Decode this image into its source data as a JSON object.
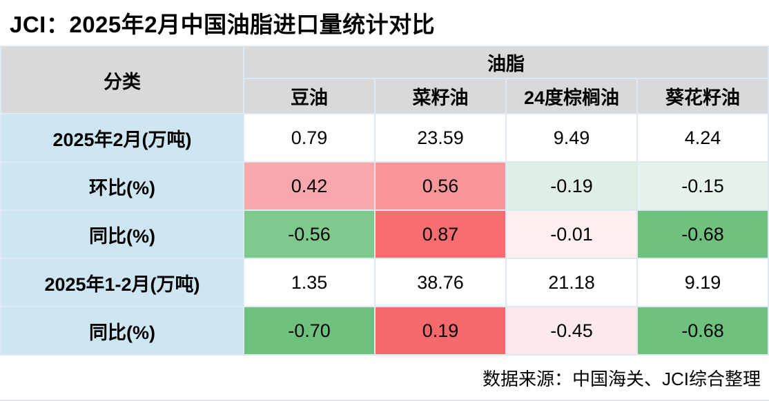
{
  "title": "JCI：2025年2月中国油脂进口量统计对比",
  "footer": {
    "source": "数据来源：中国海关、JCI综合整理"
  },
  "colors": {
    "header_bg": "#d9d9d9",
    "row_label_bg": "#cee6f2",
    "grid_line": "#dce9f3",
    "red_strong": "#f76d70",
    "pink_medium": "#f9969c",
    "pink_light": "#f8a9ae",
    "pink_faint": "#fbe9ec",
    "green_strong": "#6ec27e",
    "green_medium": "#7ec98c",
    "green_faint": "#def0e4"
  },
  "table": {
    "corner_header": "分类",
    "group_header": "油脂",
    "columns": [
      "豆油",
      "菜籽油",
      "24度棕榈油",
      "葵花籽油"
    ],
    "rows": [
      {
        "label": "2025年2月(万吨)",
        "cells": [
          {
            "value": "0.79",
            "bg": "#ffffff"
          },
          {
            "value": "23.59",
            "bg": "#ffffff"
          },
          {
            "value": "9.49",
            "bg": "#ffffff"
          },
          {
            "value": "4.24",
            "bg": "#ffffff"
          }
        ]
      },
      {
        "label": "环比(%)",
        "cells": [
          {
            "value": "0.42",
            "bg": "#f8a9ae"
          },
          {
            "value": "0.56",
            "bg": "#f9969c"
          },
          {
            "value": "-0.19",
            "bg": "#def0e4"
          },
          {
            "value": "-0.15",
            "bg": "#e6f3ea"
          }
        ]
      },
      {
        "label": "同比(%)",
        "cells": [
          {
            "value": "-0.56",
            "bg": "#7ec98c"
          },
          {
            "value": "0.87",
            "bg": "#f76d70"
          },
          {
            "value": "-0.01",
            "bg": "#fdeef0"
          },
          {
            "value": "-0.68",
            "bg": "#6fc17e"
          }
        ]
      },
      {
        "label": "2025年1-2月(万吨)",
        "cells": [
          {
            "value": "1.35",
            "bg": "#ffffff"
          },
          {
            "value": "38.76",
            "bg": "#ffffff"
          },
          {
            "value": "21.18",
            "bg": "#ffffff"
          },
          {
            "value": "9.19",
            "bg": "#ffffff"
          }
        ]
      },
      {
        "label": "同比(%)",
        "cells": [
          {
            "value": "-0.70",
            "bg": "#6ec27e"
          },
          {
            "value": "0.19",
            "bg": "#f4696b"
          },
          {
            "value": "-0.45",
            "bg": "#fbe9ec"
          },
          {
            "value": "-0.68",
            "bg": "#6ec27e"
          }
        ]
      }
    ]
  },
  "chart_data": {
    "type": "table",
    "title": "JCI：2025年2月中国油脂进口量统计对比",
    "group_header": "油脂",
    "corner_header": "分类",
    "columns": [
      "豆油",
      "菜籽油",
      "24度棕榈油",
      "葵花籽油"
    ],
    "rows": [
      {
        "label": "2025年2月(万吨)",
        "values": [
          0.79,
          23.59,
          9.49,
          4.24
        ]
      },
      {
        "label": "环比(%)",
        "values": [
          0.42,
          0.56,
          -0.19,
          -0.15
        ]
      },
      {
        "label": "同比(%)",
        "values": [
          -0.56,
          0.87,
          -0.01,
          -0.68
        ]
      },
      {
        "label": "2025年1-2月(万吨)",
        "values": [
          1.35,
          38.76,
          21.18,
          9.19
        ]
      },
      {
        "label": "同比(%)",
        "values": [
          -0.7,
          0.19,
          -0.45,
          -0.68
        ]
      }
    ],
    "source": "数据来源：中国海关、JCI综合整理",
    "color_coding": "red/pink = increase, green = decrease"
  }
}
